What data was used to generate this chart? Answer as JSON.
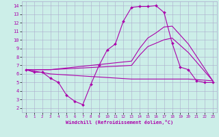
{
  "xlabel": "Windchill (Refroidissement éolien,°C)",
  "bg_color": "#cceee8",
  "line_color": "#aa00aa",
  "grid_color": "#aaaacc",
  "xlim": [
    -0.5,
    23.5
  ],
  "ylim": [
    1.5,
    14.5
  ],
  "xticks": [
    0,
    1,
    2,
    3,
    4,
    5,
    6,
    7,
    8,
    9,
    10,
    11,
    12,
    13,
    14,
    15,
    16,
    17,
    18,
    19,
    20,
    21,
    22,
    23
  ],
  "yticks": [
    2,
    3,
    4,
    5,
    6,
    7,
    8,
    9,
    10,
    11,
    12,
    13,
    14
  ],
  "line1_x": [
    0,
    1,
    2,
    3,
    4,
    5,
    6,
    7,
    8,
    9,
    10,
    11,
    12,
    13,
    14,
    15,
    16,
    17,
    18,
    19,
    20,
    21,
    22,
    23
  ],
  "line1_y": [
    6.5,
    6.2,
    6.2,
    5.5,
    5.0,
    3.5,
    2.8,
    2.4,
    4.8,
    7.0,
    8.8,
    9.5,
    12.2,
    13.8,
    13.9,
    13.9,
    14.0,
    13.2,
    9.6,
    6.8,
    6.5,
    5.2,
    5.0,
    5.0
  ],
  "line2_x": [
    0,
    3,
    13,
    14,
    15,
    16,
    17,
    18,
    20,
    23
  ],
  "line2_y": [
    6.5,
    6.5,
    7.5,
    9.0,
    10.2,
    10.8,
    11.5,
    11.6,
    9.5,
    5.2
  ],
  "line3_x": [
    0,
    3,
    13,
    14,
    15,
    16,
    17,
    18,
    20,
    23
  ],
  "line3_y": [
    6.5,
    6.5,
    7.0,
    8.2,
    9.2,
    9.6,
    10.0,
    10.2,
    8.5,
    5.2
  ],
  "line4_x": [
    0,
    3,
    13,
    15,
    18,
    20,
    23
  ],
  "line4_y": [
    6.5,
    6.0,
    5.4,
    5.4,
    5.4,
    5.4,
    5.2
  ]
}
